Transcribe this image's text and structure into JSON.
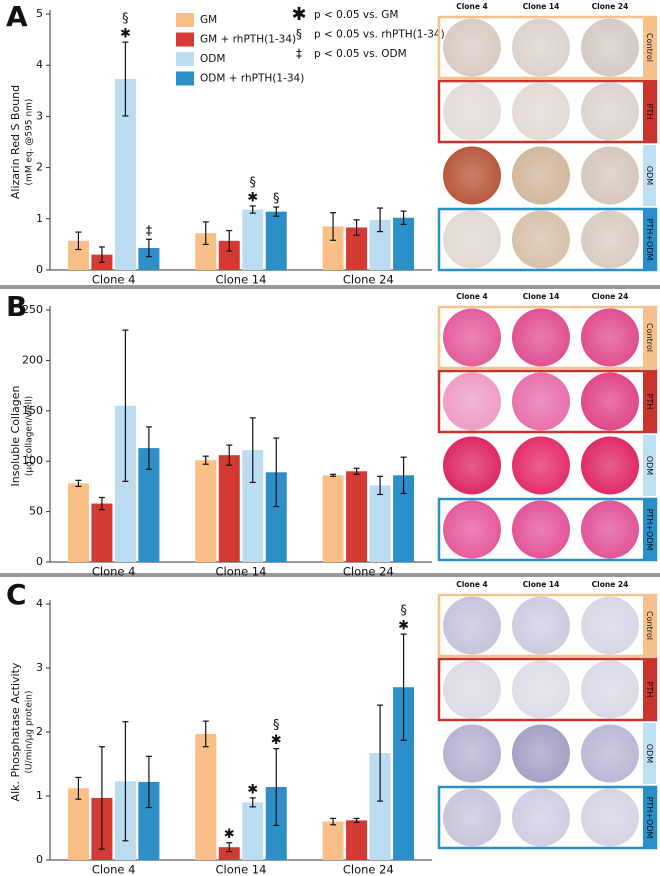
{
  "chart_data": [
    {
      "type": "bar",
      "panel": "A",
      "ylabel": "Alizarin Red S Bound",
      "ylabel_sub": "(mM eq. @595 nm)",
      "categories": [
        "Clone 4",
        "Clone 14",
        "Clone 24"
      ],
      "ylim": [
        0,
        5
      ],
      "yticks": [
        0,
        1,
        2,
        3,
        4,
        5
      ],
      "legend": true,
      "series": [
        {
          "name": "GM",
          "color": "#f9bf87",
          "values": [
            0.57,
            0.72,
            0.85
          ],
          "errors": [
            0.17,
            0.22,
            0.27
          ]
        },
        {
          "name": "GM + rhPTH(1-34)",
          "color": "#d23a33",
          "values": [
            0.3,
            0.57,
            0.83
          ],
          "errors": [
            0.15,
            0.2,
            0.15
          ]
        },
        {
          "name": "ODM",
          "color": "#bcdcf2",
          "values": [
            3.73,
            1.18,
            0.98
          ],
          "errors": [
            0.72,
            0.07,
            0.23
          ],
          "sig": [
            [
              "§",
              "✱"
            ],
            [
              "§",
              "✱"
            ],
            null
          ]
        },
        {
          "name": "ODM + rhPTH(1-34)",
          "color": "#2c8fc7",
          "values": [
            0.43,
            1.14,
            1.02
          ],
          "errors": [
            0.17,
            0.09,
            0.13
          ],
          "sig": [
            [
              "‡"
            ],
            [
              "§"
            ],
            null
          ]
        }
      ],
      "notes": [
        {
          "symbol": "✱",
          "text": "p < 0.05 vs. GM"
        },
        {
          "symbol": "§",
          "text": "p < 0.05 vs. rhPTH(1-34)"
        },
        {
          "symbol": "‡",
          "text": "p < 0.05 vs. ODM"
        }
      ]
    },
    {
      "type": "bar",
      "panel": "B",
      "ylabel": "Insoluble Collagen",
      "ylabel_sub": "(µg collagen/well)",
      "categories": [
        "Clone 4",
        "Clone 14",
        "Clone 24"
      ],
      "ylim": [
        0,
        250
      ],
      "yticks": [
        0,
        50,
        100,
        150,
        200,
        250
      ],
      "series": [
        {
          "color": "#f9bf87",
          "values": [
            78,
            101,
            86
          ],
          "errors": [
            3,
            4,
            1
          ]
        },
        {
          "color": "#d23a33",
          "values": [
            58,
            106,
            90
          ],
          "errors": [
            6,
            10,
            3
          ]
        },
        {
          "color": "#bcdcf2",
          "values": [
            155,
            111,
            76
          ],
          "errors": [
            75,
            32,
            9
          ]
        },
        {
          "color": "#2c8fc7",
          "values": [
            113,
            89,
            86
          ],
          "errors": [
            21,
            34,
            18
          ]
        }
      ]
    },
    {
      "type": "bar",
      "panel": "C",
      "ylabel": "Alk. Phosphatase Activity",
      "ylabel_sub": "(U/min/µg protein)",
      "categories": [
        "Clone 4",
        "Clone 14",
        "Clone 24"
      ],
      "ylim": [
        0,
        4
      ],
      "yticks": [
        0,
        1,
        2,
        3,
        4
      ],
      "series": [
        {
          "color": "#f9bf87",
          "values": [
            1.12,
            1.97,
            0.6
          ],
          "errors": [
            0.17,
            0.2,
            0.05
          ]
        },
        {
          "color": "#d23a33",
          "values": [
            0.97,
            0.2,
            0.62
          ],
          "errors": [
            0.8,
            0.07,
            0.03
          ],
          "sig": [
            null,
            [
              "✱"
            ],
            null
          ]
        },
        {
          "color": "#bcdcf2",
          "values": [
            1.23,
            0.9,
            1.67
          ],
          "errors": [
            0.93,
            0.07,
            0.75
          ],
          "sig": [
            null,
            [
              "✱"
            ],
            null
          ]
        },
        {
          "color": "#2c8fc7",
          "values": [
            1.22,
            1.14,
            2.7
          ],
          "errors": [
            0.4,
            0.6,
            0.83
          ],
          "sig": [
            null,
            [
              "§",
              "✱"
            ],
            [
              "§",
              "✱"
            ]
          ]
        }
      ]
    }
  ],
  "plates": [
    {
      "columns": [
        "Clone 4",
        "Clone 14",
        "Clone 24"
      ],
      "rows": [
        "Control",
        "PTH",
        "ODM",
        "PTH+ODM"
      ]
    },
    {
      "columns": [
        "Clone 4",
        "Clone 14",
        "Clone 24"
      ],
      "rows": [
        "Control",
        "PTH",
        "ODM",
        "PTH+ODM"
      ]
    },
    {
      "columns": [
        "Clone 4",
        "Clone 14",
        "Clone 24"
      ],
      "rows": [
        "Control",
        "PTH",
        "ODM",
        "PTH+ODM"
      ]
    }
  ]
}
